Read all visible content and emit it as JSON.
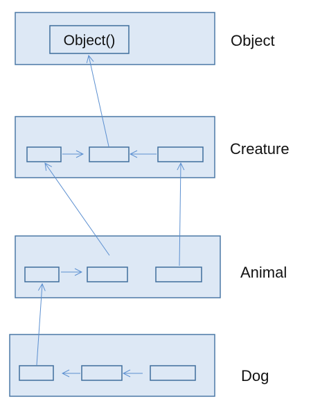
{
  "layers": {
    "object": {
      "label": "Object",
      "method_label": "Object()"
    },
    "creature": {
      "label": "Creature"
    },
    "animal": {
      "label": "Animal"
    },
    "dog": {
      "label": "Dog"
    }
  },
  "colors": {
    "box_fill": "#dde8f5",
    "box_stroke": "#4b78a6",
    "arrow": "#5b8fd0",
    "text": "#111111"
  }
}
